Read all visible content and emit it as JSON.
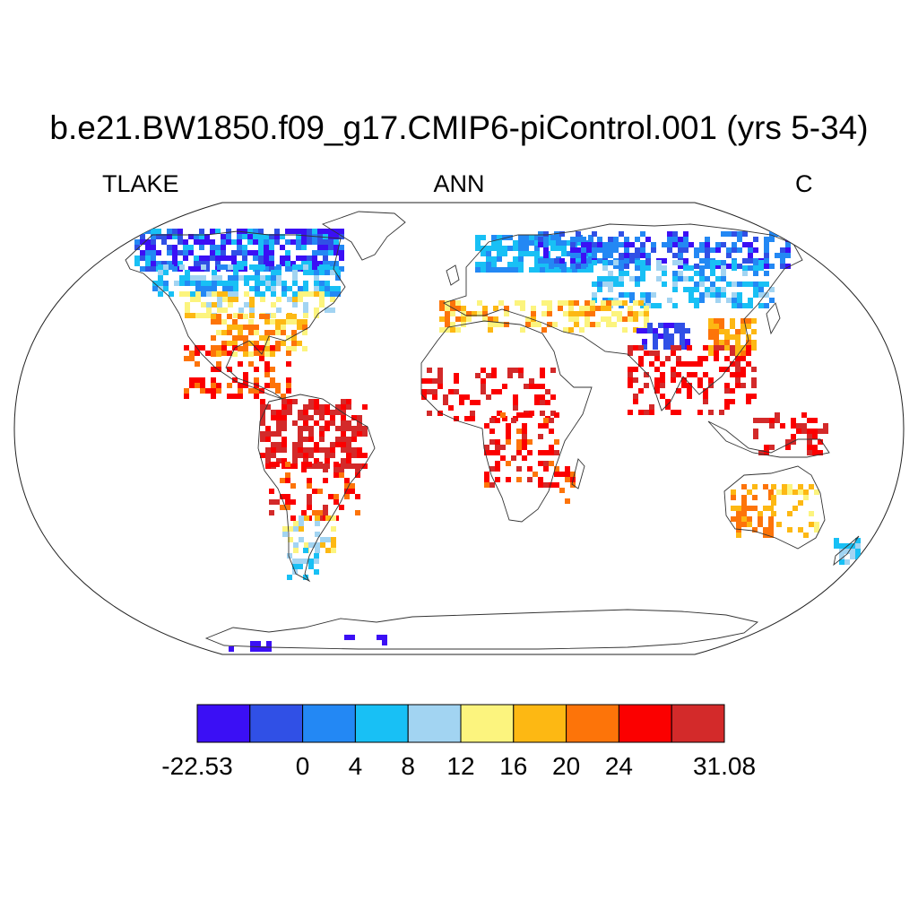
{
  "title": "b.e21.BW1850.f09_g17.CMIP6-piControl.001 (yrs 5-34)",
  "left_string": "TLAKE",
  "center_string": "ANN",
  "right_string": "C",
  "colorbar": {
    "colors": [
      "#3b0ff5",
      "#3050e6",
      "#2388f4",
      "#18c0f5",
      "#a2d4f2",
      "#fcf47e",
      "#fdb813",
      "#fd7409",
      "#fb0000",
      "#d32a2a"
    ],
    "tick_labels": [
      "-22.53",
      "0",
      "4",
      "8",
      "12",
      "16",
      "20",
      "24",
      "31.08"
    ]
  },
  "map_data": {
    "projection": "Robinson",
    "variable": "TLAKE",
    "regions": [
      {
        "name": "Northern Canada",
        "value_class": 0
      },
      {
        "name": "Central Canada",
        "value_class": 3
      },
      {
        "name": "Southern Canada",
        "value_class": 4
      },
      {
        "name": "Central USA",
        "value_class": 5
      },
      {
        "name": "Southeastern USA",
        "value_class": 7
      },
      {
        "name": "Central America",
        "value_class": 8
      },
      {
        "name": "Amazon",
        "value_class": 9
      },
      {
        "name": "Southern South America",
        "value_class": 5
      },
      {
        "name": "Patagonia",
        "value_class": 3
      },
      {
        "name": "Scandinavia",
        "value_class": 3
      },
      {
        "name": "Southern Europe",
        "value_class": 6
      },
      {
        "name": "Northern Siberia",
        "value_class": 1
      },
      {
        "name": "Central Siberia",
        "value_class": 3
      },
      {
        "name": "Tibetan Plateau",
        "value_class": 1
      },
      {
        "name": "India",
        "value_class": 8
      },
      {
        "name": "Southeast Asia",
        "value_class": 8
      },
      {
        "name": "Tropical Africa",
        "value_class": 9
      },
      {
        "name": "East Africa",
        "value_class": 8
      },
      {
        "name": "Australia",
        "value_class": 7
      },
      {
        "name": "New Zealand",
        "value_class": 4
      },
      {
        "name": "Antarctica",
        "value_class": 0
      }
    ]
  }
}
